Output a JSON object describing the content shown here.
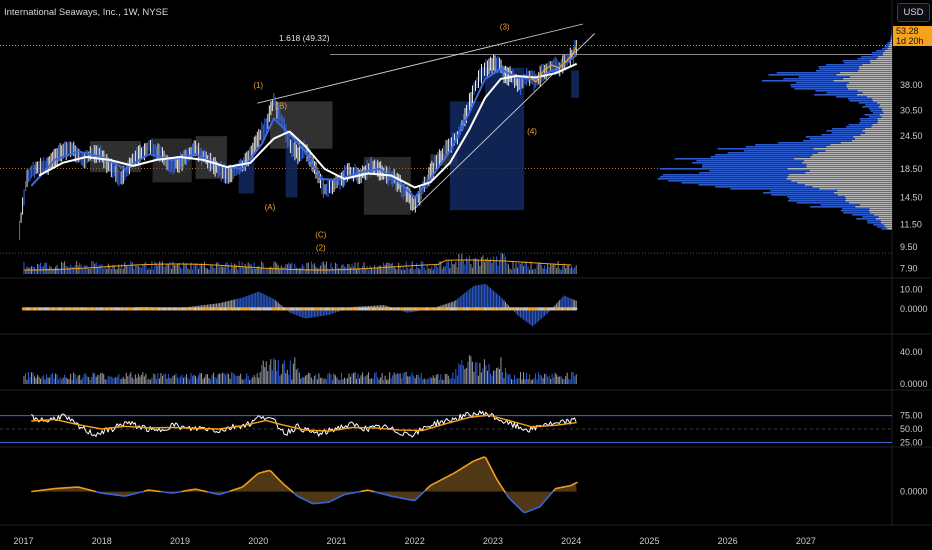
{
  "header": {
    "title": "International Seaways, Inc., 1W, NYSE",
    "currency": "USD"
  },
  "price_tag": {
    "price": "53.28",
    "countdown": "1d 20h"
  },
  "fib": {
    "label": "1.618 (49.32)"
  },
  "chart_data": {
    "type": "line",
    "title": "International Seaways, Inc., 1W, NYSE",
    "log_scale": true,
    "x_ticks": [
      "2017",
      "2018",
      "2019",
      "2020",
      "2021",
      "2022",
      "2023",
      "2024",
      "2025",
      "2026",
      "2027"
    ],
    "x_range": [
      2016.7,
      2028.1
    ],
    "price_ticks": [
      "53.28",
      "38.00",
      "30.50",
      "24.50",
      "18.50",
      "14.50",
      "11.50",
      "9.50",
      "7.90"
    ],
    "price_tick_values": [
      53.28,
      38.0,
      30.5,
      24.5,
      18.5,
      14.5,
      11.5,
      9.5,
      7.9
    ],
    "price_range": [
      7.4,
      64
    ],
    "price_series": [
      [
        2016.95,
        11.0
      ],
      [
        2017.05,
        17.5
      ],
      [
        2017.15,
        18.5
      ],
      [
        2017.3,
        19.0
      ],
      [
        2017.45,
        21.0
      ],
      [
        2017.6,
        22.5
      ],
      [
        2017.75,
        20.0
      ],
      [
        2017.95,
        21.5
      ],
      [
        2018.1,
        19.0
      ],
      [
        2018.25,
        17.0
      ],
      [
        2018.4,
        20.0
      ],
      [
        2018.6,
        22.5
      ],
      [
        2018.75,
        21.0
      ],
      [
        2018.9,
        19.0
      ],
      [
        2019.05,
        20.0
      ],
      [
        2019.2,
        22.0
      ],
      [
        2019.35,
        20.0
      ],
      [
        2019.5,
        18.5
      ],
      [
        2019.6,
        17.5
      ],
      [
        2019.8,
        19.0
      ],
      [
        2019.95,
        22.5
      ],
      [
        2020.1,
        27.0
      ],
      [
        2020.2,
        33.0
      ],
      [
        2020.3,
        28.0
      ],
      [
        2020.4,
        23.0
      ],
      [
        2020.5,
        21.0
      ],
      [
        2020.6,
        22.0
      ],
      [
        2020.7,
        19.0
      ],
      [
        2020.85,
        15.5
      ],
      [
        2021.0,
        16.5
      ],
      [
        2021.15,
        18.0
      ],
      [
        2021.3,
        17.5
      ],
      [
        2021.45,
        19.0
      ],
      [
        2021.6,
        18.0
      ],
      [
        2021.75,
        17.0
      ],
      [
        2021.9,
        15.0
      ],
      [
        2022.0,
        13.5
      ],
      [
        2022.1,
        15.5
      ],
      [
        2022.25,
        19.0
      ],
      [
        2022.4,
        22.0
      ],
      [
        2022.55,
        24.5
      ],
      [
        2022.65,
        29.0
      ],
      [
        2022.75,
        36.0
      ],
      [
        2022.85,
        42.0
      ],
      [
        2022.95,
        44.5
      ],
      [
        2023.05,
        46.0
      ],
      [
        2023.15,
        42.0
      ],
      [
        2023.25,
        40.5
      ],
      [
        2023.35,
        38.0
      ],
      [
        2023.45,
        41.0
      ],
      [
        2023.55,
        39.0
      ],
      [
        2023.65,
        43.0
      ],
      [
        2023.75,
        45.0
      ],
      [
        2023.85,
        44.0
      ],
      [
        2023.95,
        47.0
      ],
      [
        2024.03,
        50.0
      ],
      [
        2024.07,
        53.28
      ]
    ],
    "ma_slow": [
      [
        2017.2,
        17.5
      ],
      [
        2017.5,
        19.5
      ],
      [
        2017.8,
        20.5
      ],
      [
        2018.1,
        20.0
      ],
      [
        2018.4,
        19.0
      ],
      [
        2018.7,
        20.0
      ],
      [
        2019.0,
        20.5
      ],
      [
        2019.3,
        20.0
      ],
      [
        2019.6,
        18.8
      ],
      [
        2019.9,
        19.5
      ],
      [
        2020.2,
        24.0
      ],
      [
        2020.4,
        25.5
      ],
      [
        2020.6,
        22.5
      ],
      [
        2020.85,
        18.5
      ],
      [
        2021.1,
        17.0
      ],
      [
        2021.4,
        17.8
      ],
      [
        2021.7,
        17.5
      ],
      [
        2022.0,
        15.8
      ],
      [
        2022.2,
        16.5
      ],
      [
        2022.45,
        19.5
      ],
      [
        2022.7,
        26.0
      ],
      [
        2022.9,
        34.0
      ],
      [
        2023.1,
        40.0
      ],
      [
        2023.3,
        41.0
      ],
      [
        2023.55,
        40.5
      ],
      [
        2023.8,
        42.0
      ],
      [
        2024.07,
        45.5
      ]
    ],
    "ma_fast": [
      [
        2017.1,
        16.0
      ],
      [
        2017.4,
        20.0
      ],
      [
        2017.7,
        21.5
      ],
      [
        2018.0,
        20.5
      ],
      [
        2018.3,
        18.5
      ],
      [
        2018.6,
        21.0
      ],
      [
        2018.9,
        20.0
      ],
      [
        2019.2,
        21.0
      ],
      [
        2019.5,
        19.0
      ],
      [
        2019.8,
        18.5
      ],
      [
        2020.05,
        23.0
      ],
      [
        2020.2,
        28.5
      ],
      [
        2020.4,
        25.0
      ],
      [
        2020.6,
        21.5
      ],
      [
        2020.8,
        17.0
      ],
      [
        2021.0,
        16.8
      ],
      [
        2021.3,
        18.0
      ],
      [
        2021.55,
        18.5
      ],
      [
        2021.8,
        16.5
      ],
      [
        2022.0,
        14.5
      ],
      [
        2022.2,
        17.0
      ],
      [
        2022.45,
        21.5
      ],
      [
        2022.7,
        30.0
      ],
      [
        2022.9,
        40.0
      ],
      [
        2023.1,
        43.5
      ],
      [
        2023.3,
        40.5
      ],
      [
        2023.55,
        40.0
      ],
      [
        2023.8,
        43.5
      ],
      [
        2024.07,
        49.0
      ]
    ],
    "wave_labels": [
      {
        "text": "(1)",
        "x": 2020.0,
        "y": 37.0
      },
      {
        "text": "(B)",
        "x": 2020.3,
        "y": 31.0
      },
      {
        "text": "(A)",
        "x": 2020.15,
        "y": 13.0
      },
      {
        "text": "(C)",
        "x": 2020.8,
        "y": 10.3
      },
      {
        "text": "(2)",
        "x": 2020.8,
        "y": 9.2
      },
      {
        "text": "(3)",
        "x": 2023.15,
        "y": 61.0
      },
      {
        "text": "(4)",
        "x": 2023.5,
        "y": 25.0
      }
    ],
    "panels": [
      {
        "name": "momentum",
        "ticks": [
          "10.00",
          "0.0000"
        ],
        "tick_values": [
          10,
          0
        ],
        "range": [
          -12,
          15
        ]
      },
      {
        "name": "volume-strength",
        "ticks": [
          "40.00",
          "0.0000"
        ],
        "tick_values": [
          40,
          0
        ],
        "range": [
          -5,
          60
        ]
      },
      {
        "name": "rsi",
        "ticks": [
          "75.00",
          "50.00",
          "25.00"
        ],
        "tick_values": [
          75,
          50,
          25
        ],
        "range": [
          20,
          95
        ]
      },
      {
        "name": "oscillator",
        "ticks": [
          "0.0000"
        ],
        "tick_values": [
          0
        ],
        "range": [
          -10,
          14
        ]
      }
    ],
    "rsi_series": [
      [
        2017.1,
        72
      ],
      [
        2017.3,
        65
      ],
      [
        2017.5,
        75
      ],
      [
        2017.7,
        55
      ],
      [
        2017.9,
        40
      ],
      [
        2018.1,
        48
      ],
      [
        2018.3,
        62
      ],
      [
        2018.5,
        54
      ],
      [
        2018.7,
        45
      ],
      [
        2018.9,
        58
      ],
      [
        2019.1,
        50
      ],
      [
        2019.3,
        52
      ],
      [
        2019.5,
        47
      ],
      [
        2019.7,
        55
      ],
      [
        2019.9,
        60
      ],
      [
        2020.05,
        76
      ],
      [
        2020.2,
        64
      ],
      [
        2020.35,
        42
      ],
      [
        2020.5,
        55
      ],
      [
        2020.65,
        45
      ],
      [
        2020.8,
        40
      ],
      [
        2021.0,
        52
      ],
      [
        2021.2,
        58
      ],
      [
        2021.4,
        50
      ],
      [
        2021.6,
        54
      ],
      [
        2021.8,
        44
      ],
      [
        2022.0,
        40
      ],
      [
        2022.15,
        55
      ],
      [
        2022.3,
        62
      ],
      [
        2022.45,
        66
      ],
      [
        2022.6,
        73
      ],
      [
        2022.75,
        78
      ],
      [
        2022.9,
        80
      ],
      [
        2023.05,
        70
      ],
      [
        2023.2,
        60
      ],
      [
        2023.35,
        52
      ],
      [
        2023.5,
        48
      ],
      [
        2023.65,
        60
      ],
      [
        2023.8,
        58
      ],
      [
        2023.95,
        64
      ],
      [
        2024.07,
        66
      ]
    ],
    "rsi_ma": [
      [
        2017.1,
        65
      ],
      [
        2017.4,
        68
      ],
      [
        2017.7,
        58
      ],
      [
        2018.0,
        50
      ],
      [
        2018.3,
        55
      ],
      [
        2018.6,
        52
      ],
      [
        2018.9,
        53
      ],
      [
        2019.2,
        51
      ],
      [
        2019.5,
        50
      ],
      [
        2019.8,
        56
      ],
      [
        2020.1,
        66
      ],
      [
        2020.3,
        58
      ],
      [
        2020.6,
        48
      ],
      [
        2020.9,
        46
      ],
      [
        2021.2,
        53
      ],
      [
        2021.5,
        52
      ],
      [
        2021.8,
        48
      ],
      [
        2022.1,
        47
      ],
      [
        2022.4,
        60
      ],
      [
        2022.7,
        72
      ],
      [
        2022.95,
        76
      ],
      [
        2023.2,
        66
      ],
      [
        2023.5,
        54
      ],
      [
        2023.8,
        57
      ],
      [
        2024.07,
        62
      ]
    ],
    "osc_series": [
      [
        2017.1,
        0
      ],
      [
        2017.4,
        1.0
      ],
      [
        2017.7,
        1.5
      ],
      [
        2018.0,
        -0.5
      ],
      [
        2018.3,
        -1.5
      ],
      [
        2018.6,
        0.5
      ],
      [
        2018.9,
        -0.5
      ],
      [
        2019.2,
        0.8
      ],
      [
        2019.5,
        -1.0
      ],
      [
        2019.8,
        1.5
      ],
      [
        2020.0,
        6.0
      ],
      [
        2020.15,
        7.0
      ],
      [
        2020.3,
        3.0
      ],
      [
        2020.5,
        -1.5
      ],
      [
        2020.7,
        -4.0
      ],
      [
        2020.9,
        -3.5
      ],
      [
        2021.1,
        -1.0
      ],
      [
        2021.4,
        0.5
      ],
      [
        2021.7,
        -1.5
      ],
      [
        2022.0,
        -3.0
      ],
      [
        2022.2,
        2.0
      ],
      [
        2022.5,
        6.0
      ],
      [
        2022.75,
        10.0
      ],
      [
        2022.9,
        11.5
      ],
      [
        2023.05,
        4.0
      ],
      [
        2023.2,
        -2.0
      ],
      [
        2023.4,
        -7.0
      ],
      [
        2023.6,
        -5.0
      ],
      [
        2023.8,
        1.0
      ],
      [
        2024.0,
        2.0
      ],
      [
        2024.07,
        3.0
      ]
    ],
    "momentum_series": [
      [
        2017.0,
        0
      ],
      [
        2017.5,
        0.5
      ],
      [
        2018.0,
        -0.5
      ],
      [
        2018.5,
        1
      ],
      [
        2019.0,
        0.5
      ],
      [
        2019.5,
        3
      ],
      [
        2019.8,
        6
      ],
      [
        2020.0,
        9
      ],
      [
        2020.2,
        5
      ],
      [
        2020.4,
        -2
      ],
      [
        2020.6,
        -5
      ],
      [
        2020.9,
        -3
      ],
      [
        2021.2,
        1
      ],
      [
        2021.6,
        2
      ],
      [
        2021.9,
        -2
      ],
      [
        2022.2,
        0
      ],
      [
        2022.5,
        4
      ],
      [
        2022.75,
        12
      ],
      [
        2022.9,
        13
      ],
      [
        2023.1,
        6
      ],
      [
        2023.3,
        -3
      ],
      [
        2023.5,
        -9
      ],
      [
        2023.7,
        -2
      ],
      [
        2023.9,
        7
      ],
      [
        2024.07,
        4
      ]
    ]
  }
}
